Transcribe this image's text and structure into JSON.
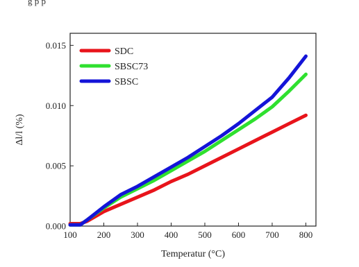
{
  "top_caption": "g                                                    p                  p",
  "chart_data": {
    "type": "line",
    "title": "",
    "xlabel": "Temperatur (°C)",
    "ylabel": "Δl/l (%)",
    "xlim": [
      100,
      830
    ],
    "ylim": [
      0,
      0.016
    ],
    "xticks": [
      100,
      200,
      300,
      400,
      500,
      600,
      700,
      800
    ],
    "yticks": [
      0.0,
      0.005,
      0.01,
      0.015
    ],
    "ytick_labels": [
      "0.000",
      "0.005",
      "0.010",
      "0.015"
    ],
    "legend_position": "top-left",
    "grid": false,
    "series": [
      {
        "name": "SDC",
        "color": "#e8141b",
        "x": [
          100,
          130,
          150,
          200,
          250,
          300,
          350,
          400,
          450,
          500,
          550,
          600,
          650,
          700,
          750,
          800
        ],
        "y": [
          0.0002,
          0.0002,
          0.0004,
          0.0012,
          0.0018,
          0.0024,
          0.003,
          0.0037,
          0.0043,
          0.005,
          0.0057,
          0.0064,
          0.0071,
          0.0078,
          0.0085,
          0.0092
        ]
      },
      {
        "name": "SBSC73",
        "color": "#2fe02f",
        "x": [
          100,
          130,
          150,
          200,
          250,
          300,
          350,
          400,
          450,
          500,
          550,
          600,
          650,
          700,
          750,
          800
        ],
        "y": [
          0.0001,
          0.0001,
          0.0005,
          0.0015,
          0.0024,
          0.0031,
          0.0038,
          0.0046,
          0.0054,
          0.0062,
          0.0071,
          0.008,
          0.0089,
          0.0099,
          0.0112,
          0.0126
        ]
      },
      {
        "name": "SBSC",
        "color": "#1414d8",
        "x": [
          100,
          130,
          150,
          200,
          250,
          300,
          350,
          400,
          450,
          500,
          550,
          600,
          650,
          700,
          750,
          800
        ],
        "y": [
          0.0001,
          0.0001,
          0.0005,
          0.0016,
          0.0026,
          0.0033,
          0.0041,
          0.0049,
          0.0057,
          0.0066,
          0.0075,
          0.0085,
          0.0096,
          0.0107,
          0.0123,
          0.0141
        ]
      }
    ]
  }
}
